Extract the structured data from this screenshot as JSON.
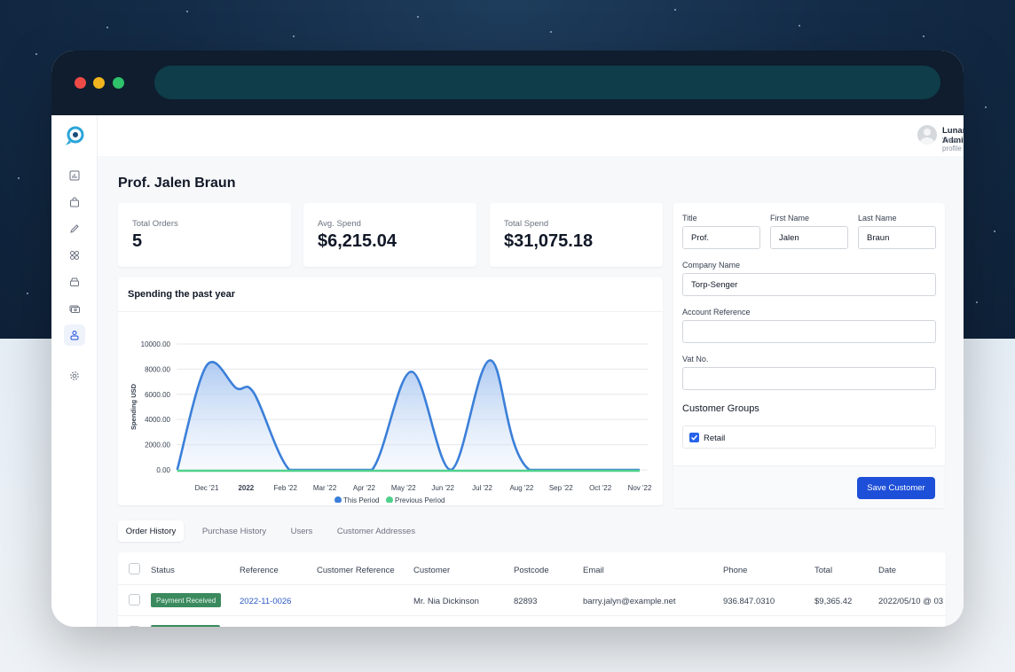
{
  "app": {
    "user": {
      "name": "Lunar Admin",
      "sub": "View profile"
    }
  },
  "page": {
    "title": "Prof. Jalen Braun"
  },
  "stats": [
    {
      "label": "Total Orders",
      "value": "5"
    },
    {
      "label": "Avg. Spend",
      "value": "$6,215.04"
    },
    {
      "label": "Total Spend",
      "value": "$31,075.18"
    }
  ],
  "chart_data": {
    "type": "area",
    "title": "Spending the past year",
    "ylabel": "Spending USD",
    "ylim": [
      0,
      10000
    ],
    "yticks": [
      "10000.00",
      "8000.00",
      "6000.00",
      "4000.00",
      "2000.00",
      "0.00"
    ],
    "categories": [
      "Dec '21",
      "2022",
      "Feb '22",
      "Mar '22",
      "Apr '22",
      "May '22",
      "Jun '22",
      "Jul '22",
      "Aug '22",
      "Sep '22",
      "Oct '22",
      "Nov '22"
    ],
    "series": [
      {
        "name": "This Period",
        "color": "#3b7fd9",
        "points": [
          [
            -0.75,
            0
          ],
          [
            0,
            8300
          ],
          [
            0.75,
            6500
          ],
          [
            1.2,
            6100
          ],
          [
            2.1,
            0
          ],
          [
            3.1,
            0
          ],
          [
            4.2,
            0
          ],
          [
            5.2,
            7800
          ],
          [
            6.2,
            0
          ],
          [
            7.2,
            8700
          ],
          [
            8.2,
            0
          ],
          [
            11.0,
            0
          ]
        ]
      },
      {
        "name": "Previous Period",
        "color": "#4fd18b",
        "points": [
          [
            -0.75,
            0
          ],
          [
            11,
            0
          ]
        ]
      }
    ],
    "legend": "bottom"
  },
  "form": {
    "title_label": "Title",
    "title_value": "Prof.",
    "first_label": "First Name",
    "first_value": "Jalen",
    "last_label": "Last Name",
    "last_value": "Braun",
    "company_label": "Company Name",
    "company_value": "Torp-Senger",
    "account_label": "Account Reference",
    "account_value": "",
    "vat_label": "Vat No.",
    "vat_value": "",
    "groups_title": "Customer Groups",
    "group_label": "Retail",
    "save_label": "Save Customer"
  },
  "tabs": [
    "Order History",
    "Purchase History",
    "Users",
    "Customer Addresses"
  ],
  "table": {
    "headers": [
      "Status",
      "Reference",
      "Customer Reference",
      "Customer",
      "Postcode",
      "Email",
      "Phone",
      "Total",
      "Date"
    ],
    "row": {
      "status": "Payment Received",
      "reference": "2022-11-0026",
      "customer_reference": "",
      "customer": "Mr. Nia Dickinson",
      "postcode": "82893",
      "email": "barry.jalyn@example.net",
      "phone": "936.847.0310",
      "total": "$9,365.42",
      "date": "2022/05/10 @ 03"
    }
  }
}
